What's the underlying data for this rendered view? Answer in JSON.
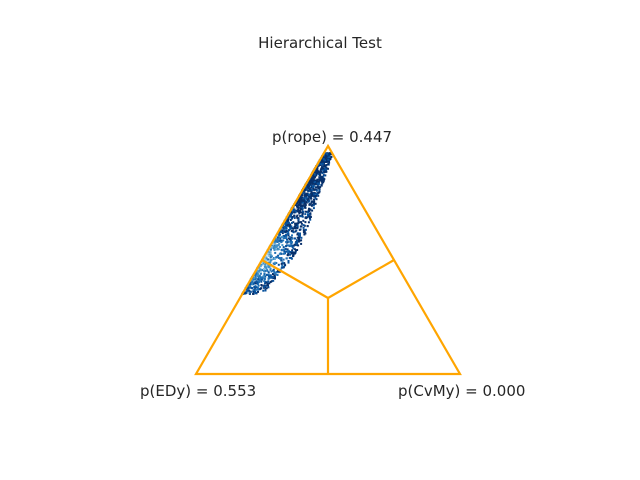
{
  "chart_data": {
    "type": "scatter",
    "plot_kind": "ternary",
    "title": "Hierarchical Test",
    "vertex_labels": {
      "top": "p(rope) = 0.447",
      "bottom_left": "p(EDy) = 0.553",
      "bottom_right": "p(CvMy) = 0.000"
    },
    "probabilities": {
      "rope": 0.447,
      "EDy": 0.553,
      "CvMy": 0.0
    },
    "frame_color": "#FFA500",
    "point_colors": [
      "#08306b",
      "#08519c",
      "#2171b5",
      "#4292c6",
      "#9ecae1"
    ],
    "sample_region": {
      "description_axis": "along left edge between rope and EDy corners",
      "rope_share_range": [
        0.35,
        0.97
      ],
      "cvmy_share_range": [
        0.0,
        0.12
      ],
      "density_peak_rope_share": 0.5
    },
    "grid": false,
    "legend": "none"
  }
}
